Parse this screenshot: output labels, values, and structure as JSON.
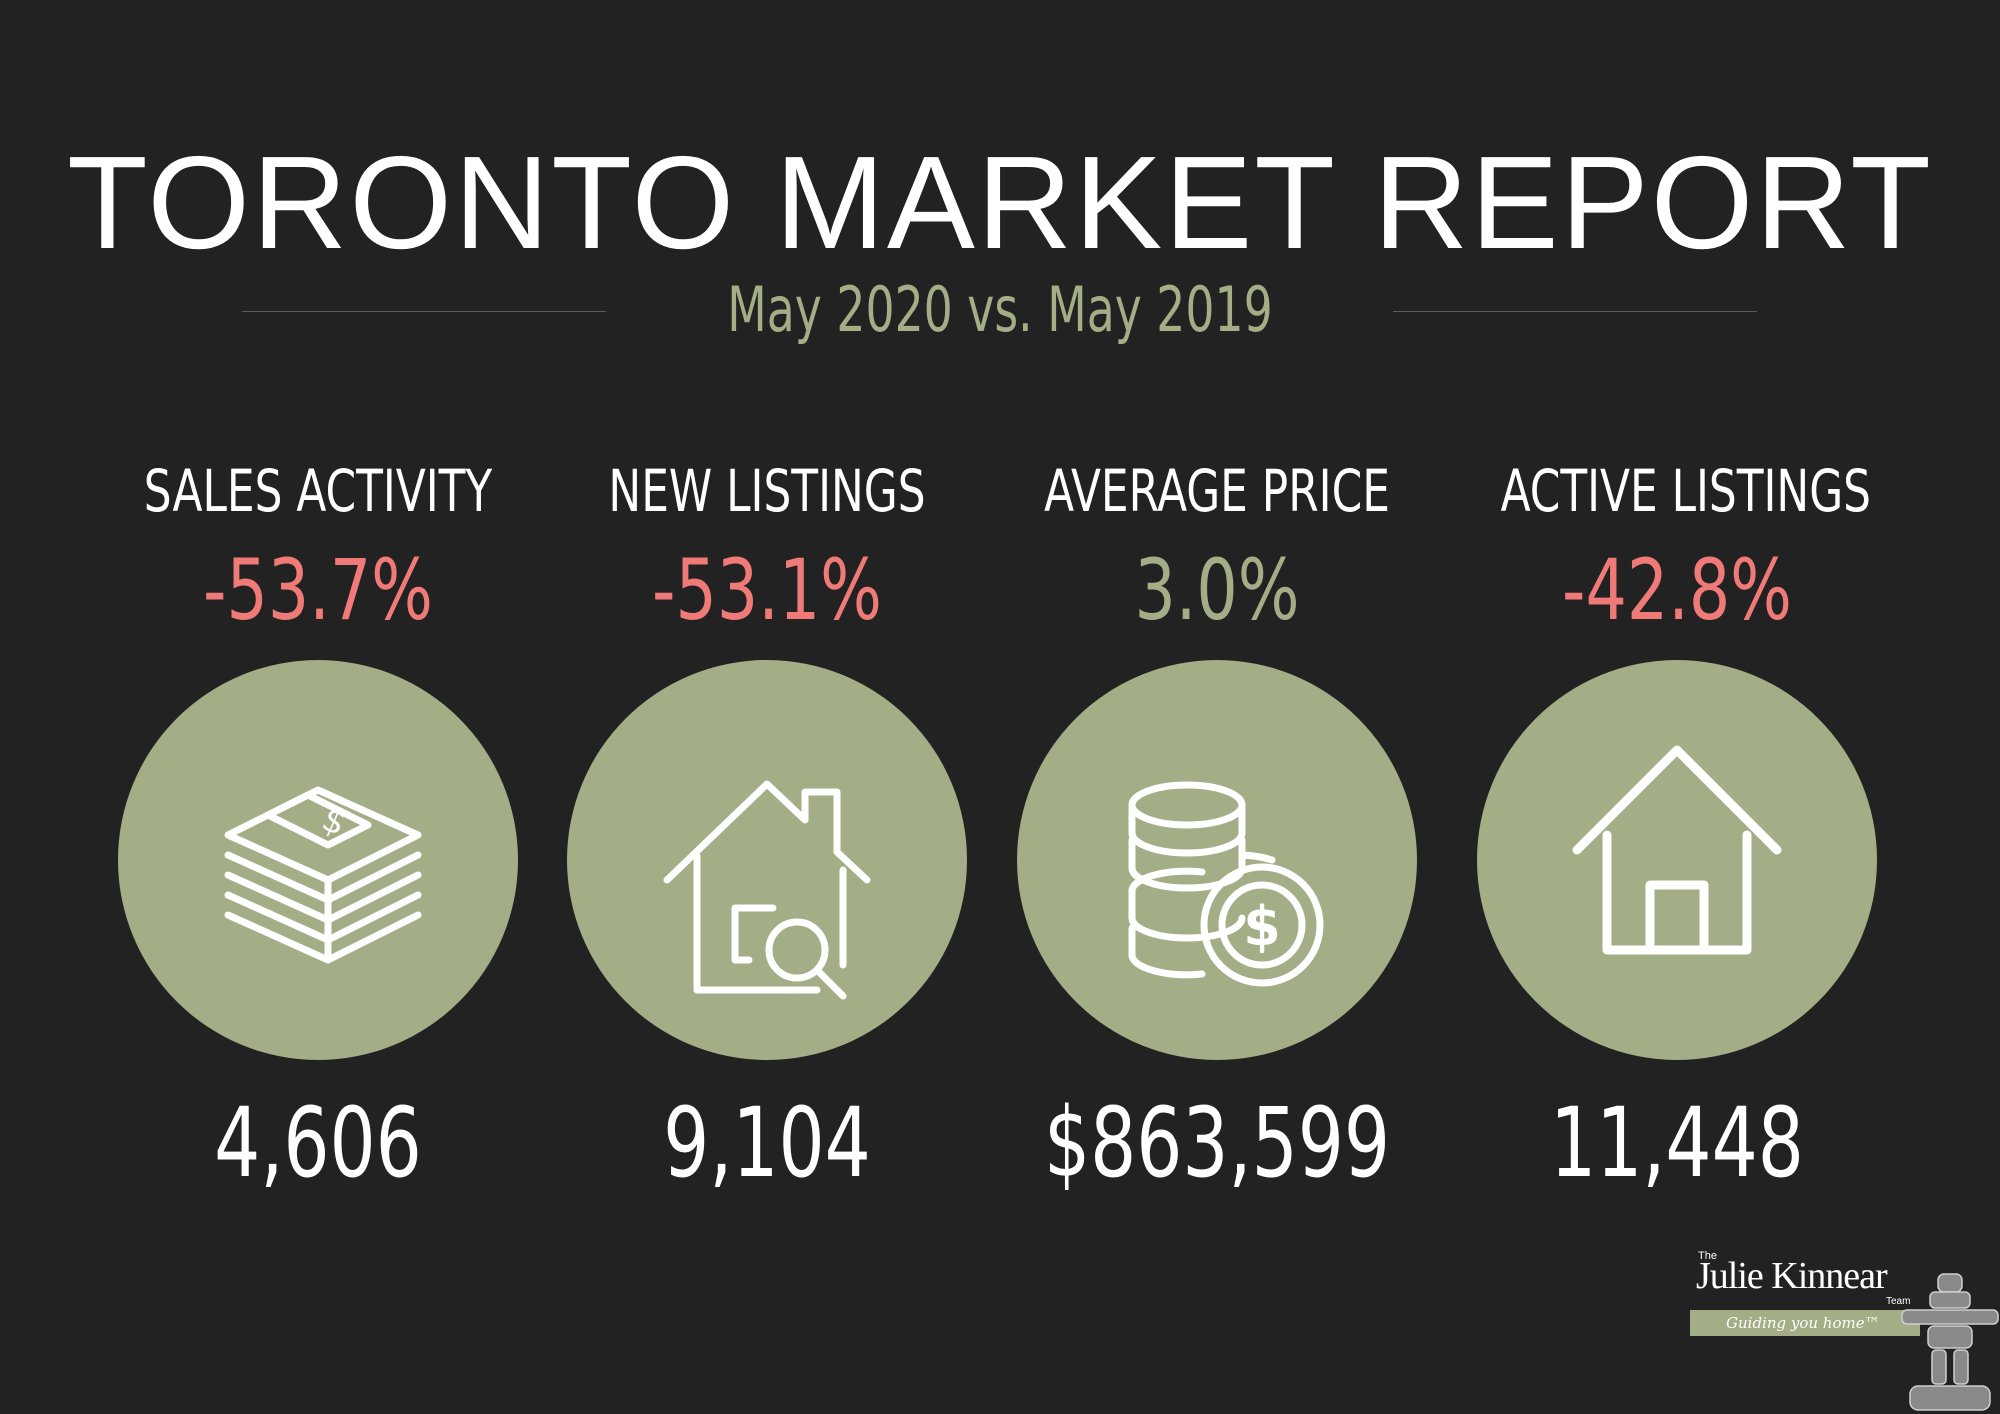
{
  "title": "TORONTO MARKET REPORT",
  "subtitle": "May 2020 vs. May 2019",
  "colors": {
    "background": "#222222",
    "accent": "#a3ad86",
    "negative": "#f07a78",
    "positive": "#a3ad86",
    "text": "#ffffff"
  },
  "stats": [
    {
      "label": "SALES ACTIVITY",
      "change": "-53.7%",
      "trend": "negative",
      "value": "4,606",
      "icon": "money-stack-icon"
    },
    {
      "label": "NEW LISTINGS",
      "change": "-53.1%",
      "trend": "negative",
      "value": "9,104",
      "icon": "house-search-icon"
    },
    {
      "label": "AVERAGE PRICE",
      "change": "3.0%",
      "trend": "positive",
      "value": "$863,599",
      "icon": "coins-dollar-icon"
    },
    {
      "label": "ACTIVE LISTINGS",
      "change": "-42.8%",
      "trend": "negative",
      "value": "11,448",
      "icon": "house-icon"
    }
  ],
  "logo": {
    "prefix": "The",
    "name": "Julie Kinnear",
    "suffix": "Team",
    "tagline": "Guiding you home™"
  }
}
